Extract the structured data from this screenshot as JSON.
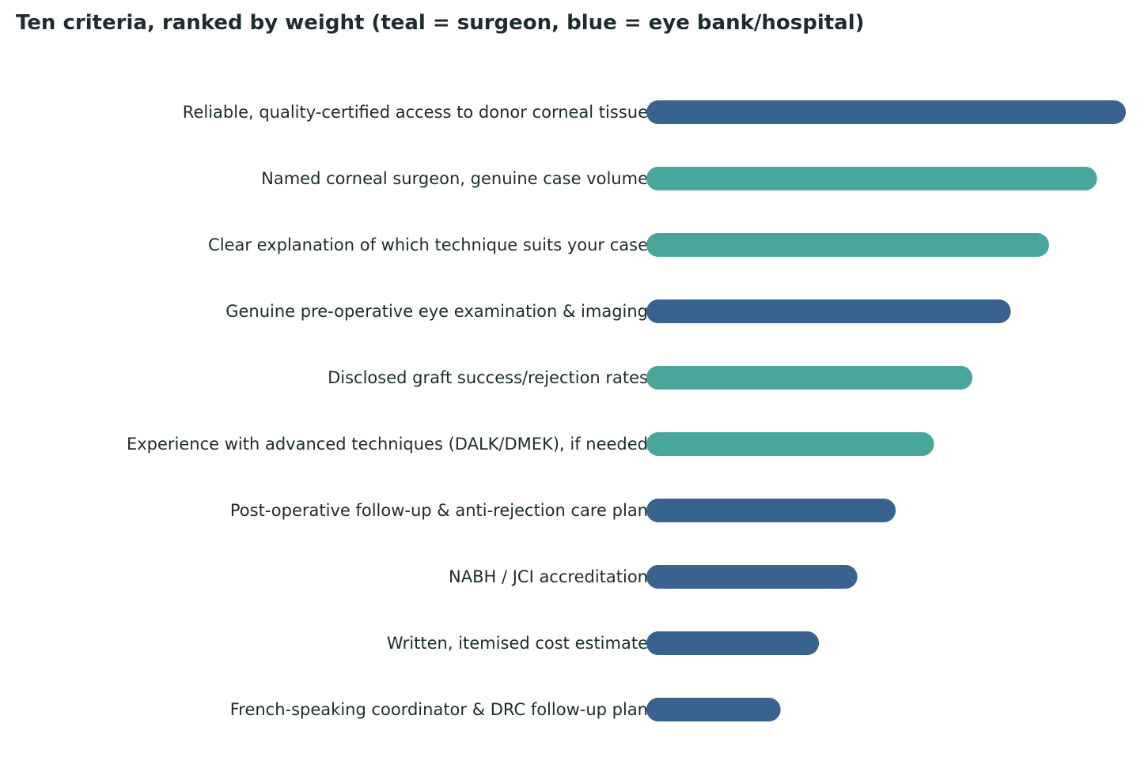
{
  "chart_data": {
    "type": "bar",
    "orientation": "horizontal",
    "title": "Ten criteria, ranked by weight (teal = surgeon, blue = eye bank/hospital)",
    "xlabel": "",
    "ylabel": "",
    "xlim": [
      0,
      100
    ],
    "grid": false,
    "categories": [
      "Reliable, quality-certified access to donor corneal tissue",
      "Named corneal surgeon, genuine case volume",
      "Clear explanation of which technique suits your case",
      "Genuine pre-operative eye examination & imaging",
      "Disclosed graft success/rejection rates",
      "Experience with advanced techniques (DALK/DMEK), if needed",
      "Post-operative follow-up & anti-rejection care plan",
      "NABH / JCI accreditation",
      "Written, itemised cost estimate",
      "French-speaking coordinator & DRC follow-up plan"
    ],
    "values": [
      100,
      94,
      84,
      76,
      68,
      60,
      52,
      44,
      36,
      28
    ],
    "groups": [
      "eye bank/hospital",
      "surgeon",
      "surgeon",
      "eye bank/hospital",
      "surgeon",
      "surgeon",
      "eye bank/hospital",
      "eye bank/hospital",
      "eye bank/hospital",
      "eye bank/hospital"
    ],
    "colors": {
      "surgeon": "#48a79a",
      "eye bank/hospital": "#38638e"
    }
  }
}
